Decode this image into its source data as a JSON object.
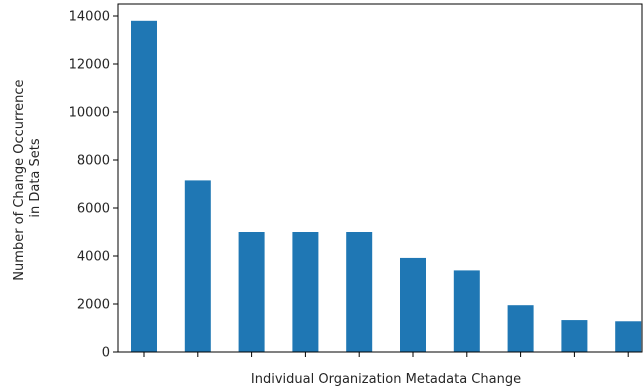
{
  "chart_data": {
    "type": "bar",
    "categories": [
      "",
      "",
      "",
      "",
      "",
      "",
      "",
      "",
      "",
      ""
    ],
    "values": [
      13800,
      7150,
      5000,
      5000,
      5000,
      3920,
      3400,
      1950,
      1330,
      1280
    ],
    "xlabel": "Individual Organization Metadata Change",
    "ylabel_lines": [
      "Number of Change Occurrence",
      "in Data Sets"
    ],
    "ylim": [
      0,
      14500
    ],
    "yticks": [
      0,
      2000,
      4000,
      6000,
      8000,
      10000,
      12000,
      14000
    ],
    "ytick_labels": [
      "0",
      "2000",
      "4000",
      "6000",
      "8000",
      "10000",
      "12000",
      "14000"
    ],
    "bar_color": "#1f77b4",
    "grid": false,
    "legend": "none"
  }
}
